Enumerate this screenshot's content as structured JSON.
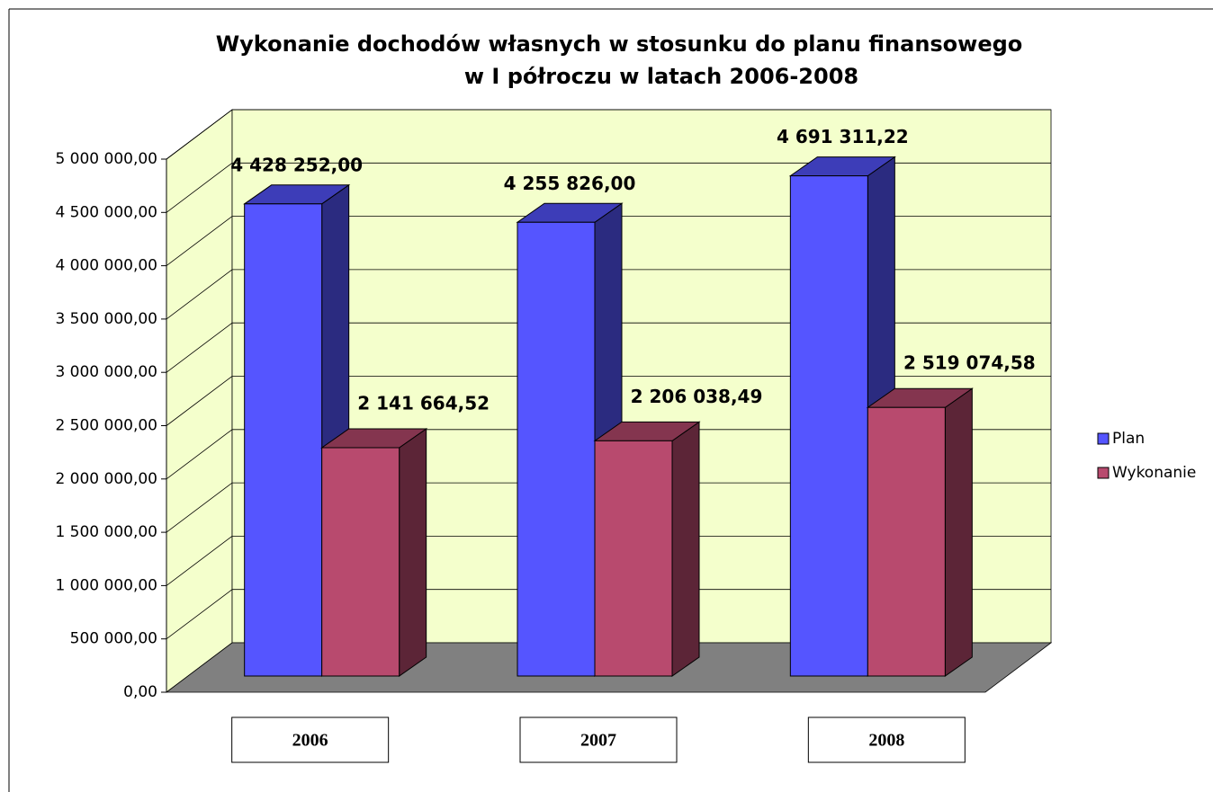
{
  "chart_data": {
    "type": "bar3d",
    "title": [
      "Wykonanie dochodów własnych w stosunku do planu finansowego",
      "w I półroczu w latach 2006-2008"
    ],
    "categories": [
      "2006",
      "2007",
      "2008"
    ],
    "series": [
      {
        "name": "Plan",
        "color": "#5555ff",
        "values": [
          4428252.0,
          4255826.0,
          4691311.22
        ],
        "value_labels": [
          "4 428 252,00",
          "4 255 826,00",
          "4 691 311,22"
        ]
      },
      {
        "name": "Wykonanie",
        "color": "#b84a6e",
        "values": [
          2141664.52,
          2206038.49,
          2519074.58
        ],
        "value_labels": [
          "2 141 664,52",
          "2 206 038,49",
          "2 519 074,58"
        ]
      }
    ],
    "ylim": [
      0,
      5000000
    ],
    "yticks": [
      {
        "value": 0,
        "label": "0,00"
      },
      {
        "value": 500000,
        "label": "500 000,00"
      },
      {
        "value": 1000000,
        "label": "1 000 000,00"
      },
      {
        "value": 1500000,
        "label": "1 500 000,00"
      },
      {
        "value": 2000000,
        "label": "2 000 000,00"
      },
      {
        "value": 2500000,
        "label": "2 500 000,00"
      },
      {
        "value": 3000000,
        "label": "3 000 000,00"
      },
      {
        "value": 3500000,
        "label": "3 500 000,00"
      },
      {
        "value": 4000000,
        "label": "4 000 000,00"
      },
      {
        "value": 4500000,
        "label": "4 500 000,00"
      },
      {
        "value": 5000000,
        "label": "5 000 000,00"
      }
    ],
    "grid": true,
    "legend": "right"
  }
}
